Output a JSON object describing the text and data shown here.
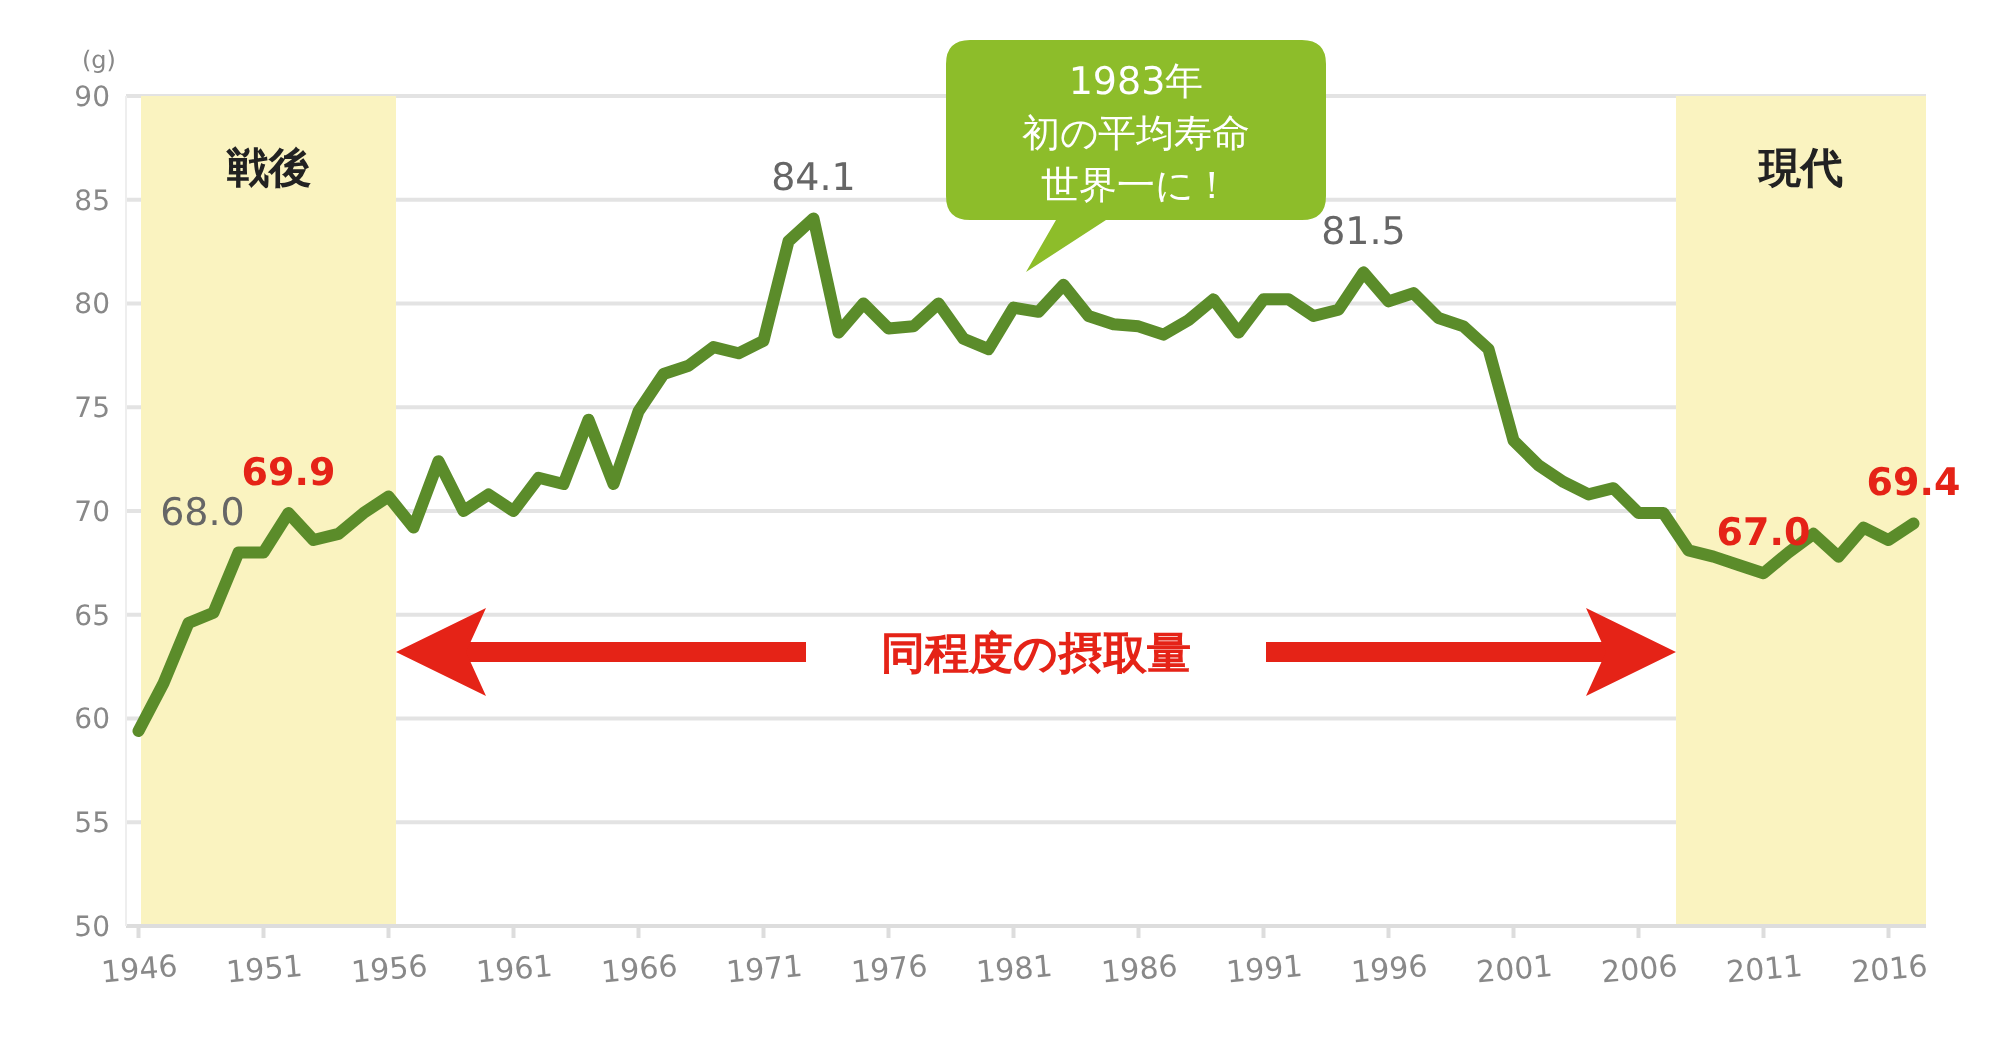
{
  "chart_data": {
    "type": "line",
    "ylabel": "(g)",
    "x": [
      1946,
      1947,
      1948,
      1949,
      1950,
      1951,
      1952,
      1953,
      1954,
      1955,
      1956,
      1957,
      1958,
      1959,
      1960,
      1961,
      1962,
      1963,
      1964,
      1965,
      1966,
      1967,
      1968,
      1969,
      1970,
      1971,
      1972,
      1973,
      1974,
      1975,
      1976,
      1977,
      1978,
      1979,
      1980,
      1981,
      1982,
      1983,
      1984,
      1985,
      1986,
      1987,
      1988,
      1989,
      1990,
      1991,
      1992,
      1993,
      1994,
      1995,
      1996,
      1997,
      1998,
      1999,
      2000,
      2001,
      2002,
      2003,
      2004,
      2005,
      2006,
      2007,
      2008,
      2009,
      2010,
      2011,
      2012,
      2013,
      2014,
      2015,
      2016,
      2017
    ],
    "series": [
      {
        "color": "#5b8c2a",
        "values": [
          59.4,
          61.7,
          64.6,
          65.1,
          68.0,
          68.0,
          69.9,
          68.6,
          68.9,
          69.9,
          70.7,
          69.2,
          72.4,
          70.0,
          70.8,
          70.0,
          71.6,
          71.3,
          74.4,
          71.3,
          74.8,
          76.6,
          77.0,
          77.9,
          77.6,
          78.2,
          83.0,
          84.1,
          78.6,
          80.0,
          78.8,
          78.9,
          80.0,
          78.3,
          77.8,
          79.8,
          79.6,
          80.9,
          79.4,
          79.0,
          78.9,
          78.5,
          79.2,
          80.2,
          78.6,
          80.2,
          80.2,
          79.4,
          79.7,
          81.5,
          80.1,
          80.5,
          79.3,
          78.9,
          77.8,
          73.4,
          72.2,
          71.4,
          70.8,
          71.1,
          69.9,
          69.9,
          68.1,
          67.8,
          67.4,
          67.0,
          68.0,
          68.9,
          67.8,
          69.2,
          68.6,
          69.4
        ]
      }
    ],
    "xlim": [
      1945.5,
      2017.5
    ],
    "xticks": [
      1946,
      1951,
      1956,
      1961,
      1966,
      1971,
      1976,
      1981,
      1986,
      1991,
      1996,
      2001,
      2006,
      2011,
      2016
    ],
    "ylim": [
      50,
      90
    ],
    "yticks": [
      50,
      55,
      60,
      65,
      70,
      75,
      80,
      85,
      90
    ],
    "grid": "y",
    "marker": "none",
    "line_style": "solid",
    "bands": [
      {
        "axis": "x",
        "from": 1946.1,
        "to": 1956.3,
        "label": "戦後",
        "color": "#faf3c0"
      },
      {
        "axis": "x",
        "from": 2007.5,
        "to": 2017.5,
        "label": "現代",
        "color": "#faf3c0"
      }
    ],
    "annotations": [
      {
        "text": "68.0",
        "x": 1950,
        "y": 68.0
      },
      {
        "text": "69.9",
        "x": 1952,
        "y": 69.9
      },
      {
        "text": "84.1",
        "x": 1973,
        "y": 84.1
      },
      {
        "text": "81.5",
        "x": 1995,
        "y": 81.5
      },
      {
        "text": "67.0",
        "x": 2011,
        "y": 67.0
      },
      {
        "text": "69.4",
        "x": 2017,
        "y": 69.4
      },
      "1983年初の平均寿命世界一に！",
      "同程度の摂取量"
    ]
  }
}
